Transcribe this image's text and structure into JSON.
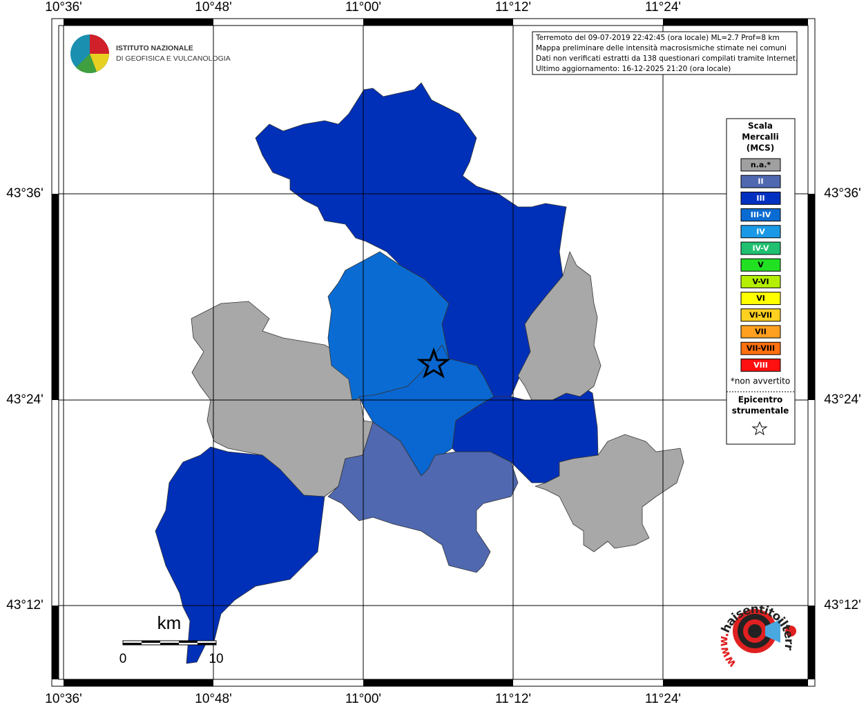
{
  "logo": {
    "lines": [
      "ISTITUTO NAZIONALE",
      "DI GEOFISICA E VULCANOLOGIA"
    ]
  },
  "info_box": {
    "lines": [
      "Terremoto del 09-07-2019 22:42:45 (ora locale) ML=2.7 Prof=8 km",
      "Mappa preliminare delle intensità macrosismiche stimate nei comuni",
      "Dati non verificati estratti da 138 questionari compilati tramite Internet.",
      "Ultimo aggiornamento: 16-12-2025 21:20 (ora locale)"
    ]
  },
  "map": {
    "lon_labels": [
      "10°36'",
      "10°48'",
      "11°00'",
      "11°12'",
      "11°24'"
    ],
    "lat_labels": [
      "43°36'",
      "43°24'",
      "43°12'"
    ]
  },
  "legend": {
    "title_lines": [
      "Scala",
      "Mercalli",
      "(MCS)"
    ],
    "items": [
      {
        "label": "n.a.*",
        "color": "#a0a0a0"
      },
      {
        "label": "II",
        "color": "#4f68b0"
      },
      {
        "label": "III",
        "color": "#0030c0"
      },
      {
        "label": "III-IV",
        "color": "#0a6cd2"
      },
      {
        "label": "IV",
        "color": "#1a9ae6"
      },
      {
        "label": "IV-V",
        "color": "#20c070"
      },
      {
        "label": "V",
        "color": "#22e022"
      },
      {
        "label": "V-VI",
        "color": "#b4ee00"
      },
      {
        "label": "VI",
        "color": "#ffff00"
      },
      {
        "label": "VI-VII",
        "color": "#ffd020"
      },
      {
        "label": "VII",
        "color": "#ffa020"
      },
      {
        "label": "VII-VIII",
        "color": "#ff7010"
      },
      {
        "label": "VIII",
        "color": "#ff1010"
      }
    ],
    "note": "*non avvertito",
    "epicenter_lines": [
      "Epicentro",
      "strumentale"
    ]
  },
  "scale_bar": {
    "unit": "km",
    "labels": [
      "0",
      "10"
    ]
  },
  "site_logo": {
    "text": "haisentitoilterremoto.it",
    "prefix": "www."
  }
}
